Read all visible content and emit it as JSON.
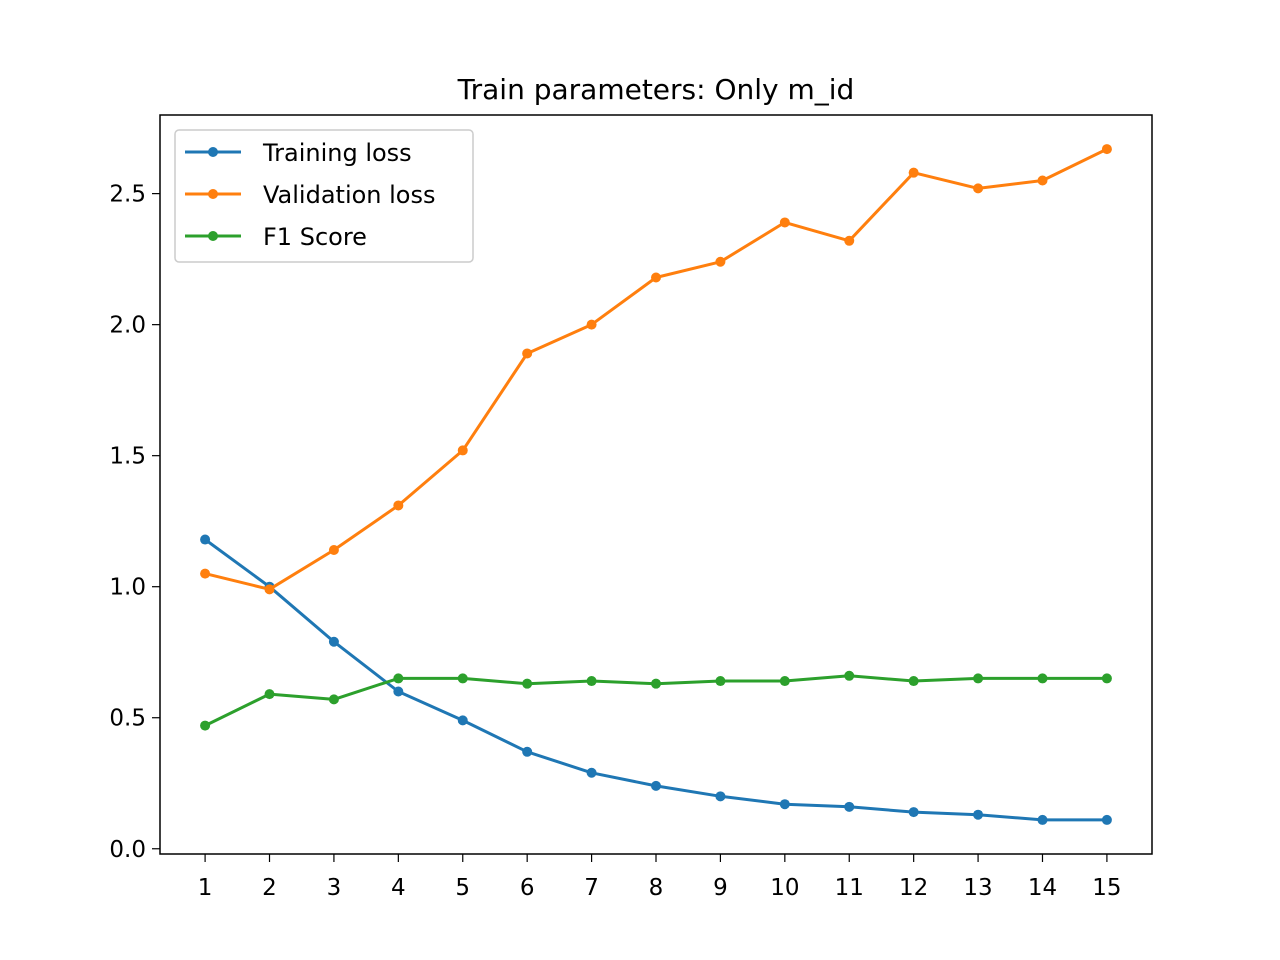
{
  "chart_data": {
    "type": "line",
    "title": "Train parameters: Only m_id",
    "xlabel": "",
    "ylabel": "",
    "x": [
      1,
      2,
      3,
      4,
      5,
      6,
      7,
      8,
      9,
      10,
      11,
      12,
      13,
      14,
      15
    ],
    "xticks": [
      "1",
      "2",
      "3",
      "4",
      "5",
      "6",
      "7",
      "8",
      "9",
      "10",
      "11",
      "12",
      "13",
      "14",
      "15"
    ],
    "yticks": [
      "0.0",
      "0.5",
      "1.0",
      "1.5",
      "2.0",
      "2.5"
    ],
    "xlim": [
      0.3,
      15.7
    ],
    "ylim": [
      -0.02,
      2.8
    ],
    "grid": false,
    "legend_position": "upper-left",
    "series": [
      {
        "name": "Training loss",
        "color": "#1f77b4",
        "values": [
          1.18,
          1.0,
          0.79,
          0.6,
          0.49,
          0.37,
          0.29,
          0.24,
          0.2,
          0.17,
          0.16,
          0.14,
          0.13,
          0.11,
          0.11
        ]
      },
      {
        "name": "Validation loss",
        "color": "#ff7f0e",
        "values": [
          1.05,
          0.99,
          1.14,
          1.31,
          1.52,
          1.89,
          2.0,
          2.18,
          2.24,
          2.39,
          2.32,
          2.58,
          2.52,
          2.55,
          2.67
        ]
      },
      {
        "name": "F1 Score",
        "color": "#2ca02c",
        "values": [
          0.47,
          0.59,
          0.57,
          0.65,
          0.65,
          0.63,
          0.64,
          0.63,
          0.64,
          0.64,
          0.66,
          0.64,
          0.65,
          0.65,
          0.65
        ]
      }
    ]
  }
}
